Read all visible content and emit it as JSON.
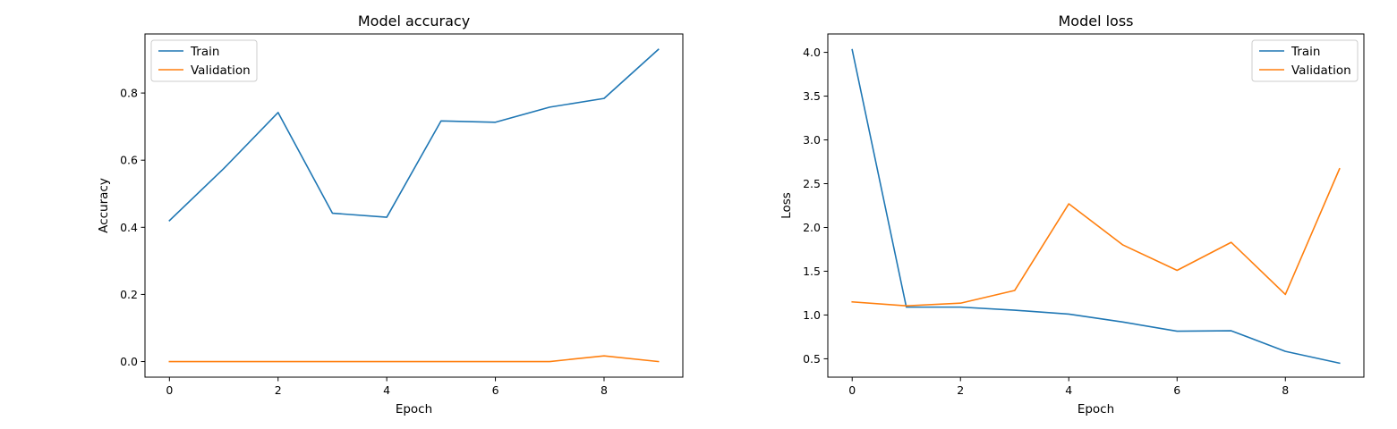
{
  "chart_data": [
    {
      "type": "line",
      "title": "Model accuracy",
      "xlabel": "Epoch",
      "ylabel": "Accuracy",
      "x": [
        0,
        1,
        2,
        3,
        4,
        5,
        6,
        7,
        8,
        9
      ],
      "xlim": [
        -0.45,
        9.45
      ],
      "ylim": [
        -0.0465,
        0.976
      ],
      "xticks": [
        0,
        2,
        4,
        6,
        8
      ],
      "yticks": [
        0.0,
        0.2,
        0.4,
        0.6,
        0.8
      ],
      "ytick_labels": [
        "0.0",
        "0.2",
        "0.4",
        "0.6",
        "0.8"
      ],
      "grid": false,
      "legend_position": "upper-left",
      "series": [
        {
          "name": "Train",
          "color": "#1f77b4",
          "values": [
            0.42,
            0.575,
            0.742,
            0.442,
            0.43,
            0.717,
            0.713,
            0.758,
            0.784,
            0.93
          ]
        },
        {
          "name": "Validation",
          "color": "#ff7f0e",
          "values": [
            0.0,
            0.0,
            0.0,
            0.0,
            0.0,
            0.0,
            0.0,
            0.0,
            0.017,
            0.0
          ]
        }
      ]
    },
    {
      "type": "line",
      "title": "Model loss",
      "xlabel": "Epoch",
      "ylabel": "Loss",
      "x": [
        0,
        1,
        2,
        3,
        4,
        5,
        6,
        7,
        8,
        9
      ],
      "xlim": [
        -0.45,
        9.45
      ],
      "ylim": [
        0.29,
        4.21
      ],
      "xticks": [
        0,
        2,
        4,
        6,
        8
      ],
      "yticks": [
        0.5,
        1.0,
        1.5,
        2.0,
        2.5,
        3.0,
        3.5,
        4.0
      ],
      "ytick_labels": [
        "0.5",
        "1.0",
        "1.5",
        "2.0",
        "2.5",
        "3.0",
        "3.5",
        "4.0"
      ],
      "grid": false,
      "legend_position": "upper-right",
      "series": [
        {
          "name": "Train",
          "color": "#1f77b4",
          "values": [
            4.03,
            1.09,
            1.09,
            1.055,
            1.01,
            0.92,
            0.815,
            0.82,
            0.585,
            0.45
          ]
        },
        {
          "name": "Validation",
          "color": "#ff7f0e",
          "values": [
            1.15,
            1.105,
            1.135,
            1.28,
            2.27,
            1.8,
            1.51,
            1.83,
            1.235,
            2.67
          ]
        }
      ]
    }
  ]
}
